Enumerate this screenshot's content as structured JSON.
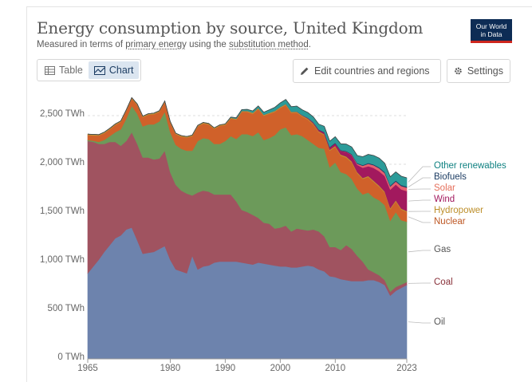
{
  "header": {
    "title": "Energy consumption by source, United Kingdom",
    "subtitle_prefix": "Measured in terms of ",
    "subtitle_link1": "primary energy",
    "subtitle_middle": " using the ",
    "subtitle_link2": "substitution method",
    "subtitle_suffix": ".",
    "logo_line1": "Our World",
    "logo_line2": "in Data"
  },
  "controls": {
    "tab_table": "Table",
    "tab_chart": "Chart",
    "edit_button": "Edit countries and regions",
    "settings_button": "Settings"
  },
  "axis": {
    "y_ticks": [
      "0 TWh",
      "500 TWh",
      "1,000 TWh",
      "1,500 TWh",
      "2,000 TWh",
      "2,500 TWh"
    ],
    "x_ticks": [
      "1965",
      "1980",
      "1990",
      "2000",
      "2010",
      "2023"
    ]
  },
  "chart_data": {
    "type": "area",
    "stacked": true,
    "x": [
      1965,
      1966,
      1967,
      1968,
      1969,
      1970,
      1971,
      1972,
      1973,
      1974,
      1975,
      1976,
      1977,
      1978,
      1979,
      1980,
      1981,
      1982,
      1983,
      1984,
      1985,
      1986,
      1987,
      1988,
      1989,
      1990,
      1991,
      1992,
      1993,
      1994,
      1995,
      1996,
      1997,
      1998,
      1999,
      2000,
      2001,
      2002,
      2003,
      2004,
      2005,
      2006,
      2007,
      2008,
      2009,
      2010,
      2011,
      2012,
      2013,
      2014,
      2015,
      2016,
      2017,
      2018,
      2019,
      2020,
      2021,
      2022,
      2023
    ],
    "y_unit": "TWh",
    "ylim": [
      0,
      2500
    ],
    "y_ticks": [
      0,
      500,
      1000,
      1500,
      2000,
      2500
    ],
    "x_ticks": [
      1965,
      1980,
      1990,
      2000,
      2010,
      2023
    ],
    "grid": "horizontal dotted",
    "legend": "right, inline labels",
    "series": [
      {
        "name": "Oil",
        "color": "#6d83ad",
        "label_color": "#555555",
        "values": [
          880,
          950,
          1020,
          1100,
          1170,
          1240,
          1270,
          1330,
          1350,
          1220,
          1080,
          1090,
          1100,
          1130,
          1160,
          1020,
          920,
          900,
          880,
          1060,
          920,
          950,
          960,
          990,
          1000,
          1000,
          1000,
          1000,
          990,
          980,
          970,
          990,
          980,
          970,
          960,
          950,
          950,
          940,
          940,
          950,
          960,
          950,
          920,
          900,
          850,
          840,
          820,
          810,
          800,
          800,
          800,
          810,
          810,
          790,
          760,
          650,
          700,
          730,
          760
        ]
      },
      {
        "name": "Coal",
        "color": "#a05360",
        "label_color": "#883039",
        "values": [
          1360,
          1280,
          1190,
          1110,
          1060,
          990,
          920,
          910,
          980,
          990,
          990,
          980,
          950,
          930,
          980,
          900,
          870,
          830,
          820,
          620,
          790,
          780,
          760,
          700,
          690,
          690,
          690,
          620,
          540,
          530,
          510,
          460,
          420,
          420,
          380,
          400,
          420,
          370,
          400,
          380,
          360,
          380,
          390,
          360,
          300,
          310,
          300,
          360,
          330,
          260,
          200,
          110,
          80,
          70,
          50,
          40,
          40,
          35,
          30
        ]
      },
      {
        "name": "Gas",
        "color": "#6c9a5a",
        "label_color": "#555555",
        "values": [
          10,
          12,
          20,
          40,
          60,
          100,
          170,
          230,
          270,
          310,
          320,
          340,
          360,
          380,
          400,
          410,
          410,
          430,
          440,
          460,
          530,
          540,
          540,
          520,
          520,
          550,
          600,
          640,
          780,
          800,
          810,
          880,
          850,
          880,
          960,
          1010,
          1010,
          990,
          970,
          960,
          930,
          880,
          860,
          900,
          820,
          870,
          800,
          730,
          720,
          690,
          690,
          790,
          770,
          770,
          770,
          730,
          770,
          660,
          620
        ]
      },
      {
        "name": "Nuclear",
        "color": "#d0612a",
        "label_color": "#bd5622",
        "values": [
          50,
          55,
          65,
          70,
          70,
          75,
          75,
          80,
          75,
          90,
          95,
          100,
          105,
          100,
          100,
          100,
          110,
          125,
          135,
          150,
          150,
          150,
          150,
          155,
          185,
          165,
          180,
          200,
          230,
          230,
          230,
          240,
          250,
          250,
          240,
          220,
          230,
          230,
          220,
          200,
          210,
          200,
          160,
          140,
          170,
          160,
          170,
          170,
          170,
          160,
          160,
          160,
          160,
          140,
          130,
          120,
          110,
          110,
          100
        ]
      },
      {
        "name": "Hydropower",
        "color": "#bf9434",
        "label_color": "#bc8e29",
        "values": [
          10,
          10,
          10,
          10,
          10,
          10,
          10,
          10,
          10,
          10,
          10,
          10,
          10,
          10,
          10,
          10,
          10,
          10,
          10,
          10,
          10,
          10,
          10,
          10,
          10,
          10,
          10,
          10,
          10,
          10,
          10,
          10,
          10,
          10,
          10,
          10,
          10,
          10,
          10,
          10,
          10,
          10,
          10,
          10,
          10,
          10,
          10,
          10,
          10,
          10,
          10,
          10,
          10,
          10,
          10,
          10,
          10,
          10,
          10
        ]
      },
      {
        "name": "Wind",
        "color": "#a2195e",
        "label_color": "#a2195e",
        "values": [
          0,
          0,
          0,
          0,
          0,
          0,
          0,
          0,
          0,
          0,
          0,
          0,
          0,
          0,
          0,
          0,
          0,
          0,
          0,
          0,
          0,
          0,
          0,
          0,
          0,
          0,
          0,
          0,
          0,
          0,
          0,
          0,
          0,
          0,
          0,
          1,
          1,
          2,
          3,
          5,
          8,
          11,
          14,
          17,
          22,
          25,
          38,
          48,
          65,
          75,
          105,
          100,
          132,
          148,
          160,
          190,
          163,
          197,
          205
        ]
      },
      {
        "name": "Solar",
        "color": "#e4606f",
        "label_color": "#e56e5a",
        "values": [
          0,
          0,
          0,
          0,
          0,
          0,
          0,
          0,
          0,
          0,
          0,
          0,
          0,
          0,
          0,
          0,
          0,
          0,
          0,
          0,
          0,
          0,
          0,
          0,
          0,
          0,
          0,
          0,
          0,
          0,
          0,
          0,
          0,
          0,
          0,
          0,
          0,
          0,
          0,
          0,
          0,
          0,
          0,
          0,
          0,
          0,
          1,
          2,
          5,
          10,
          20,
          26,
          28,
          31,
          31,
          33,
          31,
          35,
          36
        ]
      },
      {
        "name": "Biofuels",
        "color": "#1d3d63",
        "label_color": "#1d3d63",
        "values": [
          0,
          0,
          0,
          0,
          0,
          0,
          0,
          0,
          0,
          0,
          0,
          0,
          0,
          0,
          0,
          0,
          0,
          0,
          0,
          0,
          0,
          0,
          0,
          0,
          0,
          0,
          0,
          0,
          0,
          0,
          0,
          0,
          0,
          0,
          0,
          0,
          0,
          0,
          0,
          0,
          0,
          2,
          3,
          5,
          6,
          7,
          7,
          7,
          6,
          7,
          8,
          8,
          8,
          9,
          10,
          10,
          10,
          10,
          10
        ]
      },
      {
        "name": "Other renewables",
        "color": "#2c9b99",
        "label_color": "#0f8181",
        "values": [
          0,
          0,
          0,
          0,
          0,
          0,
          0,
          0,
          0,
          0,
          0,
          0,
          0,
          0,
          0,
          0,
          0,
          0,
          0,
          0,
          0,
          0,
          0,
          0,
          0,
          0,
          5,
          8,
          12,
          15,
          18,
          20,
          25,
          30,
          35,
          40,
          45,
          50,
          55,
          55,
          55,
          55,
          55,
          58,
          60,
          62,
          65,
          70,
          72,
          78,
          85,
          88,
          92,
          95,
          90,
          88,
          88,
          90,
          90
        ]
      }
    ]
  }
}
